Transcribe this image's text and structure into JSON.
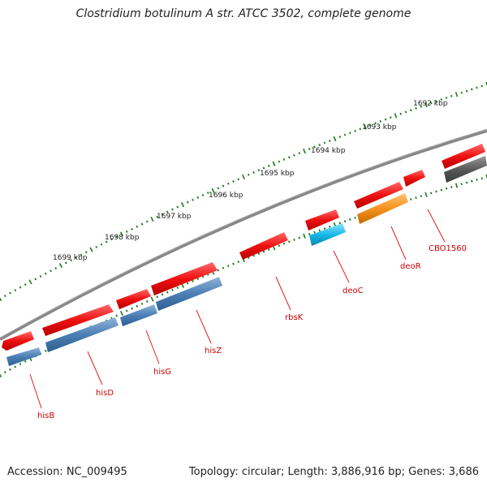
{
  "title": "Clostridium botulinum A str. ATCC 3502, complete genome",
  "accession": "Accession: NC_009495",
  "summary": "Topology: circular; Length: 3,886,916 bp; Genes: 3,686",
  "colors": {
    "backbone": "#777777",
    "ticks": "#1a7a1a",
    "forward_gene": "#ee1111",
    "cds_blue": "#4a7fb5",
    "cds_cyan": "#18b8e8",
    "cds_orange": "#f5921e",
    "cds_gray": "#5a5a5a",
    "label": "#cc0000"
  },
  "kbp_ticks": [
    {
      "label": "1692 kbp",
      "kbp": 1692
    },
    {
      "label": "1693 kbp",
      "kbp": 1693
    },
    {
      "label": "1694 kbp",
      "kbp": 1694
    },
    {
      "label": "1695 kbp",
      "kbp": 1695
    },
    {
      "label": "1696 kbp",
      "kbp": 1696
    },
    {
      "label": "1697 kbp",
      "kbp": 1697
    },
    {
      "label": "1698 kbp",
      "kbp": 1698
    },
    {
      "label": "1699 kbp",
      "kbp": 1699
    }
  ],
  "genes": [
    {
      "name": "hisB"
    },
    {
      "name": "hisD"
    },
    {
      "name": "hisG"
    },
    {
      "name": "hisZ"
    },
    {
      "name": "rbsK"
    },
    {
      "name": "deoC"
    },
    {
      "name": "deoR"
    },
    {
      "name": "CBO1560"
    }
  ]
}
